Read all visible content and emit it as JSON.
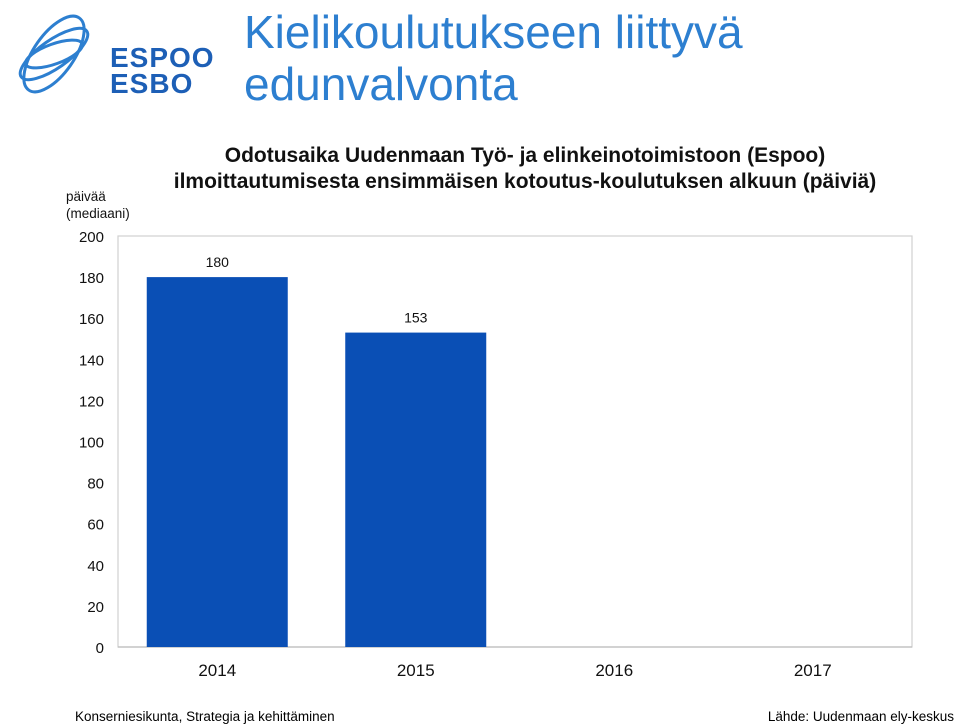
{
  "logo": {
    "line1": "ESPOO",
    "line2": "ESBO",
    "color": "#1d5fb6"
  },
  "slide_title": "Kielikoulutukseen liittyvä edunvalvonta",
  "footer": {
    "left": "Konserniesikunta, Strategia ja kehittäminen",
    "right": "Lähde: Uudenmaan  ely-keskus"
  },
  "chart_data": {
    "type": "bar",
    "title": "Odotusaika Uudenmaan Työ- ja elinkeinotoimistoon (Espoo) ilmoittautumisesta ensimmäisen kotoutus-koulutuksen alkuun (päiviä)",
    "ylabel": "päivää\n(mediaani)",
    "xlabel": "",
    "categories": [
      "2014",
      "2015",
      "2016",
      "2017"
    ],
    "values": [
      180,
      153,
      null,
      null
    ],
    "data_labels": [
      "180",
      "153",
      "",
      ""
    ],
    "ylim": [
      0,
      200
    ],
    "yticks": [
      0,
      20,
      40,
      60,
      80,
      100,
      120,
      140,
      160,
      180,
      200
    ],
    "bar_color": "#0a4fb5",
    "grid": false,
    "legend": "none"
  }
}
